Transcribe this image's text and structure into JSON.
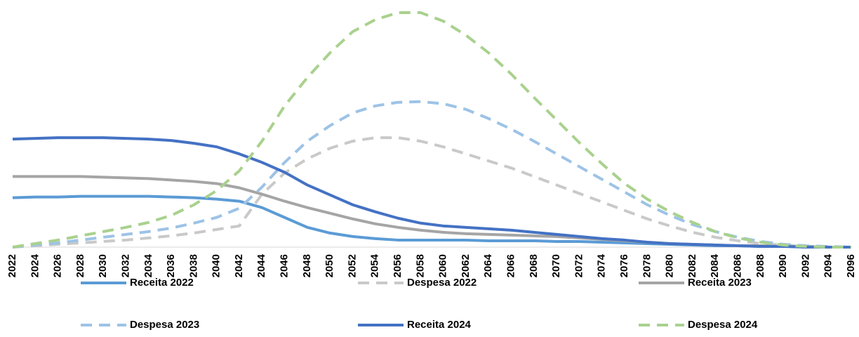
{
  "chart_data": {
    "type": "line",
    "categories": [
      "2022",
      "2024",
      "2026",
      "2028",
      "2030",
      "2032",
      "2034",
      "2036",
      "2038",
      "2040",
      "2042",
      "2044",
      "2046",
      "2048",
      "2050",
      "2052",
      "2054",
      "2056",
      "2058",
      "2060",
      "2062",
      "2064",
      "2066",
      "2068",
      "2070",
      "2072",
      "2074",
      "2076",
      "2078",
      "2080",
      "2082",
      "2084",
      "2086",
      "2088",
      "2090",
      "2092",
      "2094",
      "2096"
    ],
    "series": [
      {
        "name": "Receita 2022",
        "color": "#5B9BD5",
        "dashed": false,
        "values": [
          70,
          71,
          71,
          72,
          72,
          72,
          72,
          71,
          70,
          68,
          65,
          56,
          42,
          28,
          20,
          15,
          12,
          10,
          10,
          10,
          10,
          9,
          9,
          9,
          8,
          8,
          7,
          6,
          5,
          4,
          3,
          2,
          2,
          1,
          1,
          1,
          0,
          0
        ]
      },
      {
        "name": "Despesa 2022",
        "color": "#C9C9C9",
        "dashed": true,
        "values": [
          0,
          2,
          4,
          6,
          8,
          10,
          13,
          16,
          20,
          25,
          30,
          75,
          105,
          125,
          140,
          150,
          155,
          155,
          150,
          142,
          132,
          122,
          112,
          100,
          88,
          76,
          64,
          52,
          40,
          30,
          21,
          14,
          9,
          5,
          3,
          1,
          0,
          0
        ]
      },
      {
        "name": "Receita 2023",
        "color": "#A5A5A5",
        "dashed": false,
        "values": [
          100,
          100,
          100,
          100,
          99,
          98,
          97,
          95,
          93,
          90,
          84,
          75,
          65,
          56,
          48,
          40,
          33,
          28,
          24,
          21,
          19,
          18,
          17,
          16,
          15,
          13,
          11,
          9,
          7,
          5,
          4,
          3,
          2,
          2,
          1,
          1,
          0,
          0
        ]
      },
      {
        "name": "Despesa 2023",
        "color": "#9DC3E6",
        "dashed": true,
        "values": [
          0,
          3,
          6,
          10,
          14,
          18,
          22,
          27,
          34,
          42,
          55,
          85,
          120,
          150,
          172,
          190,
          200,
          205,
          206,
          203,
          195,
          182,
          167,
          150,
          132,
          114,
          96,
          78,
          60,
          45,
          32,
          22,
          14,
          8,
          4,
          2,
          1,
          0
        ]
      },
      {
        "name": "Receita 2024",
        "color": "#4472C4",
        "dashed": false,
        "values": [
          153,
          154,
          155,
          155,
          155,
          154,
          153,
          151,
          147,
          142,
          132,
          120,
          106,
          88,
          74,
          60,
          50,
          41,
          34,
          30,
          28,
          26,
          24,
          21,
          18,
          15,
          12,
          10,
          7,
          5,
          4,
          3,
          2,
          1,
          1,
          0,
          0,
          0
        ]
      },
      {
        "name": "Despesa 2024",
        "color": "#A9D18E",
        "dashed": true,
        "values": [
          0,
          5,
          10,
          16,
          22,
          28,
          35,
          45,
          60,
          80,
          108,
          150,
          200,
          240,
          275,
          305,
          322,
          332,
          332,
          320,
          300,
          275,
          245,
          212,
          180,
          148,
          118,
          90,
          68,
          50,
          35,
          22,
          13,
          7,
          3,
          1,
          0,
          0
        ]
      }
    ]
  }
}
